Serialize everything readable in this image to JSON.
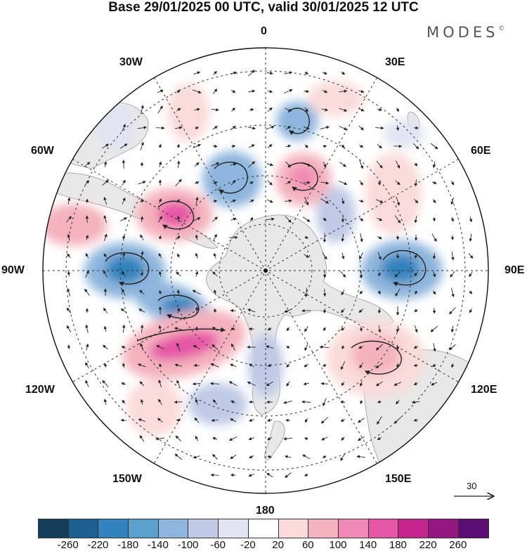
{
  "title": "Base 29/01/2025 00 UTC, valid 30/01/2025 12 UTC",
  "brand": "MODES",
  "brand_mark": "©",
  "longitude_labels": {
    "lon_0": "0",
    "lon_30e": "30E",
    "lon_60e": "60E",
    "lon_90e": "90E",
    "lon_120e": "120E",
    "lon_150e": "150E",
    "lon_180": "180",
    "lon_150w": "150W",
    "lon_120w": "120W",
    "lon_90w": "90W",
    "lon_60w": "60W",
    "lon_30w": "30W"
  },
  "reference_vector": {
    "label": "30"
  },
  "colorbar": {
    "colors": [
      "#143d5a",
      "#1d5f8e",
      "#3283bd",
      "#5aa0cc",
      "#8eb5dd",
      "#c0c9e6",
      "#e3e3f2",
      "#ffffff",
      "#fadada",
      "#f4b2be",
      "#f089b4",
      "#e657a6",
      "#c8248e",
      "#951783",
      "#5c0d73"
    ],
    "ticks": [
      "-260",
      "-220",
      "-180",
      "-140",
      "-100",
      "-60",
      "-20",
      "20",
      "60",
      "100",
      "140",
      "180",
      "220",
      "260"
    ]
  },
  "map_features": {
    "projection": "south-polar-stereographic",
    "anomaly_centres": [
      {
        "sign": "negative",
        "lon": -90,
        "lat": -57,
        "intensity": "strong"
      },
      {
        "sign": "negative",
        "lon": -110,
        "lat": -64,
        "intensity": "strong"
      },
      {
        "sign": "negative",
        "lon": 90,
        "lat": -57,
        "intensity": "strong"
      },
      {
        "sign": "negative",
        "lon": -20,
        "lat": -66,
        "intensity": "moderate"
      },
      {
        "sign": "negative",
        "lon": 0,
        "lat": -45,
        "intensity": "moderate"
      },
      {
        "sign": "negative",
        "lon": 60,
        "lat": -62,
        "intensity": "weak"
      },
      {
        "sign": "negative",
        "lon": -160,
        "lat": -57,
        "intensity": "weak"
      },
      {
        "sign": "positive",
        "lon": -55,
        "lat": -62,
        "intensity": "strong"
      },
      {
        "sign": "positive",
        "lon": -125,
        "lat": -57,
        "intensity": "strong"
      },
      {
        "sign": "positive",
        "lon": 25,
        "lat": -60,
        "intensity": "moderate"
      },
      {
        "sign": "positive",
        "lon": 70,
        "lat": -45,
        "intensity": "weak"
      },
      {
        "sign": "positive",
        "lon": 125,
        "lat": -50,
        "intensity": "weak"
      },
      {
        "sign": "positive",
        "lon": -80,
        "lat": -40,
        "intensity": "weak"
      }
    ]
  }
}
